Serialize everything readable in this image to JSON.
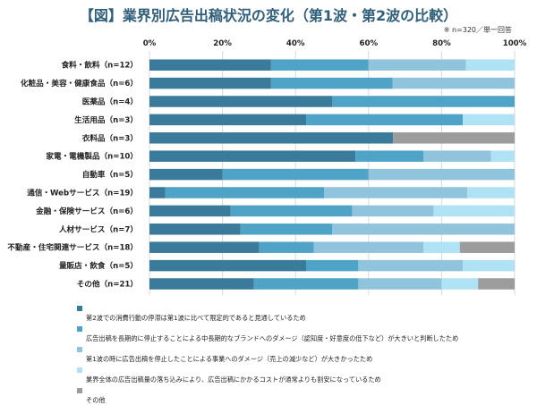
{
  "title": "【図】業界別広告出稿状況の変化（第1波・第2波の比較）",
  "note": "※ n=320／単一回答",
  "chart_data": {
    "type": "bar",
    "orientation": "horizontal",
    "stacked": true,
    "x_ticks": [
      "0%",
      "20%",
      "40%",
      "60%",
      "80%",
      "100%"
    ],
    "xlim": [
      0,
      100
    ],
    "grid": true,
    "legend_position": "bottom",
    "categories": [
      "食料・飲料（n=12）",
      "化粧品・美容・健康食品（n=6）",
      "医薬品（n=4）",
      "生活用品（n=3）",
      "衣料品（n=3）",
      "家電・電機製品（n=10）",
      "自動車（n=5）",
      "通信・Webサービス（n=19）",
      "金融・保険サービス（n=6）",
      "人材サービス（n=7）",
      "不動産・住宅関連サービス（n=18）",
      "量販店・飲食（n=5）",
      "その他（n=21）"
    ],
    "series": [
      {
        "name": "第2波での消費行動の停滞は第1波に比べて限定的であると見通しているため",
        "color": "#3a7a9a",
        "values": [
          33.3,
          33.3,
          50.0,
          42.9,
          66.7,
          56.4,
          20.0,
          4.3,
          22.2,
          24.9,
          30.0,
          42.9,
          28.6
        ]
      },
      {
        "name": "広告出稿を長期的に停止することによる中長期的なブランドへのダメージ（認知度・好意度の低下など）が大きいと判断したため",
        "color": "#4fa3c7",
        "values": [
          26.7,
          33.3,
          50.0,
          42.9,
          0.0,
          18.6,
          40.0,
          43.5,
          33.3,
          25.1,
          15.0,
          14.3,
          28.6
        ]
      },
      {
        "name": "第1波の時に広告出稿を停止したことによる事業へのダメージ（売上の減少など）が大きかったため",
        "color": "#8fc4dc",
        "values": [
          26.7,
          33.4,
          0.0,
          0.0,
          0.0,
          18.5,
          40.0,
          39.2,
          22.3,
          50.0,
          30.0,
          28.6,
          22.8
        ]
      },
      {
        "name": "業界全体の広告出稿量の落ち込みにより、広告出稿にかかるコストが通常よりも割安になっているため",
        "color": "#aee2f4",
        "values": [
          13.3,
          0.0,
          0.0,
          14.2,
          0.0,
          6.5,
          0.0,
          13.0,
          22.2,
          0.0,
          10.0,
          14.2,
          10.0
        ]
      },
      {
        "name": "その他",
        "color": "#9c9c9c",
        "values": [
          0.0,
          0.0,
          0.0,
          0.0,
          33.3,
          0.0,
          0.0,
          0.0,
          0.0,
          0.0,
          15.0,
          0.0,
          10.0
        ]
      }
    ]
  }
}
